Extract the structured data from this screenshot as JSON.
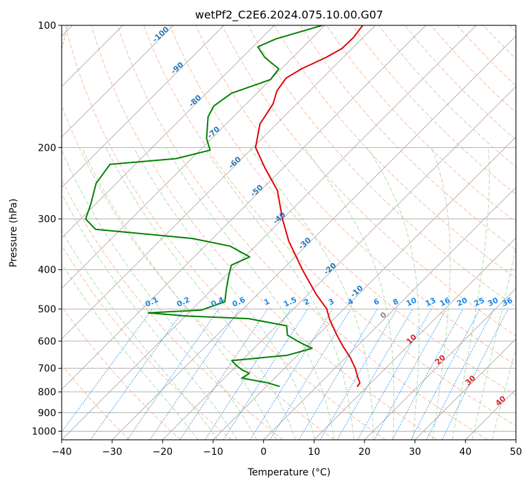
{
  "chart_data": {
    "type": "line",
    "subtype": "skew-T log-P diagram",
    "title": "wetPf2_C2E6.2024.075.10.00.G07",
    "xlabel": "Temperature (°C)",
    "ylabel": "Pressure (hPa)",
    "xlim": [
      -40,
      50
    ],
    "ylim": [
      1050,
      100
    ],
    "y_scale": "log",
    "x_ticks": [
      "−40",
      "−30",
      "−20",
      "−10",
      "0",
      "10",
      "20",
      "30",
      "40",
      "50"
    ],
    "y_ticks": [
      "100",
      "200",
      "300",
      "400",
      "500",
      "600",
      "700",
      "800",
      "900",
      "1000"
    ],
    "grid": true,
    "colors": {
      "temperature": "#e00000",
      "dewpoint": "#008000",
      "isotherm": "#888888",
      "dry_adiabat": "#f4a582",
      "moist_adiabat": "#9fcf9f",
      "mixing_ratio": "#1e88e5",
      "dry_label": "#2e78b8",
      "moist_label": "#d62728",
      "isohume": "#d2b48c"
    },
    "series": [
      {
        "name": "",
        "role": "temperature",
        "points": [
          {
            "p": 100,
            "t": -62.5
          },
          {
            "p": 107,
            "t": -61.9
          },
          {
            "p": 114,
            "t": -62.0
          },
          {
            "p": 120,
            "t": -63.4
          },
          {
            "p": 128,
            "t": -66.0
          },
          {
            "p": 135,
            "t": -67.2
          },
          {
            "p": 145,
            "t": -66.5
          },
          {
            "p": 156,
            "t": -64.7
          },
          {
            "p": 175,
            "t": -63.3
          },
          {
            "p": 200,
            "t": -59.5
          },
          {
            "p": 225,
            "t": -53.5
          },
          {
            "p": 255,
            "t": -46.7
          },
          {
            "p": 300,
            "t": -40.0
          },
          {
            "p": 340,
            "t": -34.4
          },
          {
            "p": 400,
            "t": -26.0
          },
          {
            "p": 460,
            "t": -18.4
          },
          {
            "p": 500,
            "t": -13.4
          },
          {
            "p": 530,
            "t": -10.8
          },
          {
            "p": 580,
            "t": -6.2
          },
          {
            "p": 620,
            "t": -2.6
          },
          {
            "p": 660,
            "t": 1.0
          },
          {
            "p": 700,
            "t": 4.0
          },
          {
            "p": 740,
            "t": 6.5
          },
          {
            "p": 760,
            "t": 7.8
          },
          {
            "p": 775,
            "t": 8.0
          }
        ]
      },
      {
        "name": "",
        "role": "dewpoint",
        "points": [
          {
            "p": 100,
            "t": -70.5
          },
          {
            "p": 108,
            "t": -77.0
          },
          {
            "p": 113,
            "t": -79.0
          },
          {
            "p": 120,
            "t": -75.5
          },
          {
            "p": 128,
            "t": -70.5
          },
          {
            "p": 136,
            "t": -70.0
          },
          {
            "p": 147,
            "t": -75.0
          },
          {
            "p": 158,
            "t": -76.0
          },
          {
            "p": 168,
            "t": -75.0
          },
          {
            "p": 190,
            "t": -71.0
          },
          {
            "p": 203,
            "t": -68.0
          },
          {
            "p": 213,
            "t": -73.0
          },
          {
            "p": 220,
            "t": -85.0
          },
          {
            "p": 245,
            "t": -84.0
          },
          {
            "p": 275,
            "t": -81.0
          },
          {
            "p": 300,
            "t": -79.0
          },
          {
            "p": 318,
            "t": -75.0
          },
          {
            "p": 335,
            "t": -54.0
          },
          {
            "p": 350,
            "t": -45.0
          },
          {
            "p": 372,
            "t": -39.0
          },
          {
            "p": 390,
            "t": -41.0
          },
          {
            "p": 420,
            "t": -39.0
          },
          {
            "p": 450,
            "t": -37.0
          },
          {
            "p": 480,
            "t": -35.0
          },
          {
            "p": 503,
            "t": -38.0
          },
          {
            "p": 511,
            "t": -48.0
          },
          {
            "p": 520,
            "t": -40.0
          },
          {
            "p": 528,
            "t": -27.0
          },
          {
            "p": 550,
            "t": -18.0
          },
          {
            "p": 580,
            "t": -16.0
          },
          {
            "p": 605,
            "t": -12.0
          },
          {
            "p": 625,
            "t": -8.5
          },
          {
            "p": 650,
            "t": -12.0
          },
          {
            "p": 670,
            "t": -22.0
          },
          {
            "p": 690,
            "t": -20.0
          },
          {
            "p": 707,
            "t": -18.0
          },
          {
            "p": 720,
            "t": -16.0
          },
          {
            "p": 740,
            "t": -16.5
          },
          {
            "p": 760,
            "t": -10.5
          },
          {
            "p": 775,
            "t": -7.5
          }
        ]
      }
    ],
    "dry_adiabat_labels": [
      "-100",
      "-90",
      "-80",
      "-70",
      "-60",
      "-50",
      "-40",
      "-30",
      "-20",
      "-10",
      "0"
    ],
    "moist_adiabat_labels": [
      "10",
      "20",
      "30",
      "40"
    ],
    "mixing_ratio_labels": [
      "0.1",
      "0.2",
      "0.4",
      "0.6",
      "1",
      "1.5",
      "2",
      "3",
      "4",
      "6",
      "8",
      "10",
      "13",
      "16",
      "20",
      "25",
      "30",
      "36"
    ]
  }
}
